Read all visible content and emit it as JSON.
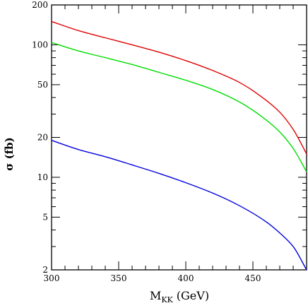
{
  "chart_data": {
    "type": "line",
    "title": "",
    "xlabel": "M",
    "xlabel_sub": "KK",
    "xlabel_unit": "(GeV)",
    "ylabel": "σ (fb)",
    "xlim": [
      300,
      490
    ],
    "ylim": [
      2,
      200
    ],
    "yscale": "log",
    "grid": false,
    "legend": "none",
    "x_ticks": [
      300,
      350,
      400,
      450
    ],
    "y_ticks": [
      2,
      5,
      10,
      20,
      50,
      100,
      200
    ],
    "x_tick_labels": [
      "300",
      "350",
      "400",
      "450"
    ],
    "y_tick_labels": [
      "2",
      "5",
      "10",
      "20",
      "50",
      "100",
      "200"
    ],
    "x": [
      300,
      320,
      340,
      360,
      380,
      400,
      420,
      440,
      460,
      470,
      480,
      490
    ],
    "series": [
      {
        "color": "#e00000",
        "values": [
          150,
          128,
          113,
          100,
          88,
          76,
          64,
          52,
          38,
          31,
          23,
          15
        ]
      },
      {
        "color": "#00dd00",
        "values": [
          104,
          90,
          80,
          71,
          62,
          54,
          46,
          37,
          27,
          22,
          16.5,
          11
        ]
      },
      {
        "color": "#0000dd",
        "values": [
          19,
          16.2,
          14.3,
          12.4,
          10.7,
          9.1,
          7.6,
          6.1,
          4.6,
          3.8,
          3.0,
          2.0
        ]
      }
    ]
  }
}
